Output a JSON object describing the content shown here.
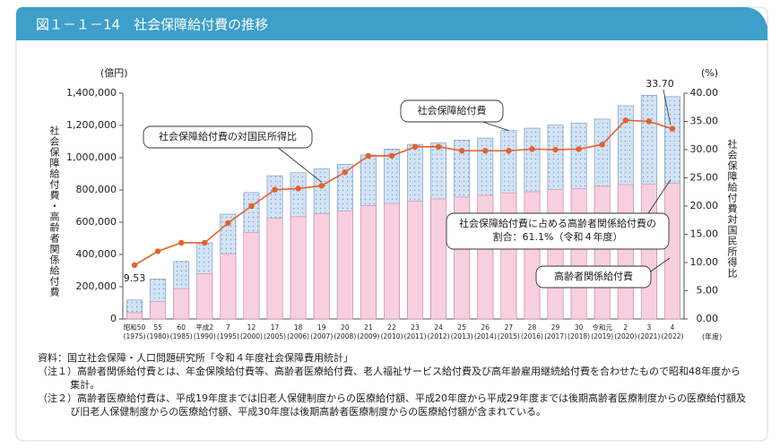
{
  "header": {
    "title": "図１－１－14　社会保障給付費の推移"
  },
  "chart_data": {
    "type": "bar",
    "y_unit": "(億円)",
    "y_label": "社会保障給付費・高齢者関係給付費",
    "y2_unit": "(%)",
    "y2_label": "社会保障給付費対国民所得比",
    "x_unit": "(年度)",
    "categories": [
      "昭和50",
      "55",
      "60",
      "平成2",
      "7",
      "12",
      "17",
      "18",
      "19",
      "20",
      "21",
      "22",
      "23",
      "24",
      "25",
      "26",
      "27",
      "28",
      "29",
      "30",
      "令和元",
      "2",
      "3",
      "4"
    ],
    "category_years": [
      "(1975)",
      "(1980)",
      "(1985)",
      "(1990)",
      "(1995)",
      "(2000)",
      "(2005)",
      "(2006)",
      "(2007)",
      "(2008)",
      "(2009)",
      "(2010)",
      "(2011)",
      "(2012)",
      "(2013)",
      "(2014)",
      "(2015)",
      "(2016)",
      "(2017)",
      "(2018)",
      "(2019)",
      "(2020)",
      "(2021)",
      "(2022)"
    ],
    "series": [
      {
        "name": "社会保障給付費",
        "type": "bar",
        "color": "#d3e3f6",
        "values": [
          117693,
          247736,
          356798,
          472203,
          649842,
          783985,
          888529,
          906727,
          930595,
          959436,
          1016735,
          1053646,
          1082744,
          1090744,
          1107796,
          1121734,
          1168403,
          1183089,
          1202443,
          1213987,
          1239241,
          1322211,
          1387433,
          1378337
        ]
      },
      {
        "name": "高齢者関係給付費",
        "type": "bar",
        "color": "#f8cfdf",
        "values": [
          39000,
          107514,
          188287,
          280000,
          405000,
          537000,
          625000,
          634000,
          653000,
          669000,
          702000,
          716000,
          730000,
          745000,
          756000,
          767000,
          781000,
          789000,
          803000,
          807000,
          823000,
          833000,
          836000,
          842000
        ]
      },
      {
        "name": "社会保障給付費の対国民所得比",
        "type": "line",
        "axis": "y2",
        "color": "#e2622b",
        "values": [
          9.53,
          12.0,
          13.5,
          13.5,
          17.0,
          20.0,
          22.9,
          23.1,
          23.6,
          26.0,
          28.9,
          28.9,
          30.5,
          30.5,
          29.8,
          29.8,
          29.8,
          30.1,
          30.0,
          30.1,
          30.9,
          35.2,
          35.0,
          33.7
        ],
        "value_labels": [
          "9.53",
          null,
          null,
          null,
          null,
          null,
          null,
          null,
          null,
          null,
          null,
          null,
          null,
          null,
          null,
          null,
          null,
          null,
          null,
          null,
          null,
          null,
          null,
          "33.70"
        ]
      }
    ],
    "annotations": [
      "社会保障給付費に占める高齢者関係給付費の",
      "割合：61.1%（令和４年度）"
    ],
    "ylim": [
      0,
      1400000
    ],
    "yticks": [
      0,
      {
        "value": 200000,
        "label": "200,000"
      },
      {
        "value": 400000,
        "label": "400,000"
      },
      {
        "value": 600000,
        "label": "600,000"
      },
      {
        "value": 800000,
        "label": "800,000"
      },
      {
        "value": 1000000,
        "label": "1,000,000"
      },
      {
        "value": 1200000,
        "label": "1,200,000"
      },
      {
        "value": 1400000,
        "label": "1,400,000"
      }
    ],
    "y2lim": [
      0,
      40
    ],
    "y2ticks": [
      {
        "value": 0,
        "label": "0.00"
      },
      {
        "value": 5,
        "label": "5.00"
      },
      {
        "value": 10,
        "label": "10.00"
      },
      {
        "value": 15,
        "label": "15.00"
      },
      {
        "value": 20,
        "label": "20.00"
      },
      {
        "value": 25,
        "label": "25.00"
      },
      {
        "value": 30,
        "label": "30.00"
      },
      {
        "value": 35,
        "label": "35.00"
      },
      {
        "value": 40,
        "label": "40.00"
      }
    ],
    "grid": false
  },
  "notes": {
    "source": "資料：国立社会保障・人口問題研究所「令和４年度社会保障費用統計」",
    "items": [
      "（注１）高齢者関係給付費とは、年金保険給付費等、高齢者医療給付費、老人福祉サービス給付費及び高年齢雇用継続給付費を合わせたもので昭和48年度から集計。",
      "（注２）高齢者医療給付費は、平成19年度までは旧老人保健制度からの医療給付額、平成20年度から平成29年度までは後期高齢者医療制度からの医療給付額及び旧老人保健制度からの医療給付額、平成30年度は後期高齢者医療制度からの医療給付額が含まれている。"
    ]
  }
}
